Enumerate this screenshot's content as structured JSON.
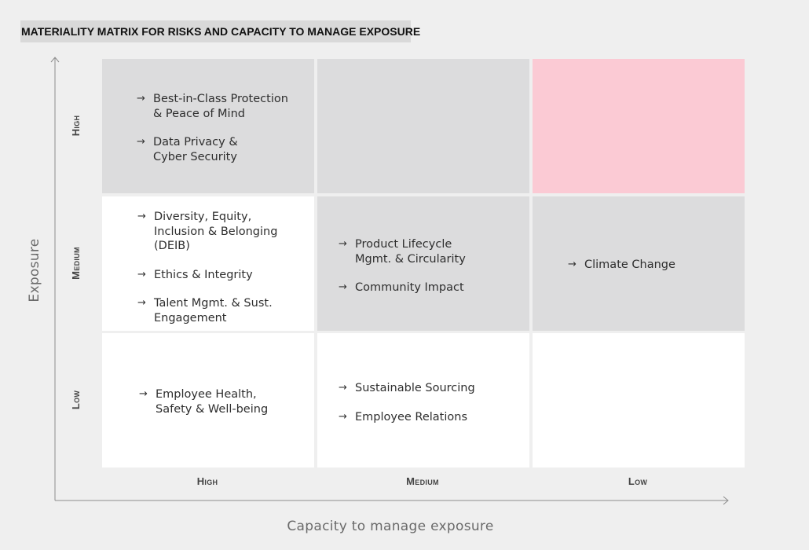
{
  "title": "MATERIALITY MATRIX FOR RISKS AND CAPACITY TO MANAGE EXPOSURE",
  "axes": {
    "y_title": "Exposure",
    "x_title": "Capacity to manage exposure",
    "y_levels": [
      "High",
      "Medium",
      "Low"
    ],
    "x_levels": [
      "High",
      "Medium",
      "Low"
    ]
  },
  "arrow_glyph": "→",
  "colors": {
    "background": "#efefef",
    "grey_cell": "#dcdcdd",
    "white_cell": "#ffffff",
    "highlight_cell": "#fbcad4"
  },
  "cells": {
    "high_exposure_high_capacity": {
      "fill": "grey",
      "items": [
        "Best-in-Class Protection\n& Peace of Mind",
        "Data Privacy &\nCyber Security"
      ]
    },
    "high_exposure_medium_capacity": {
      "fill": "grey",
      "items": []
    },
    "high_exposure_low_capacity": {
      "fill": "pink",
      "items": []
    },
    "medium_exposure_high_capacity": {
      "fill": "white",
      "items": [
        "Diversity, Equity,\nInclusion & Belonging\n(DEIB)",
        "Ethics & Integrity",
        "Talent Mgmt. & Sust.\nEngagement"
      ]
    },
    "medium_exposure_medium_capacity": {
      "fill": "grey",
      "items": [
        "Product Lifecycle\nMgmt. & Circularity",
        "Community Impact"
      ]
    },
    "medium_exposure_low_capacity": {
      "fill": "grey",
      "items": [
        "Climate Change"
      ]
    },
    "low_exposure_high_capacity": {
      "fill": "white",
      "items": [
        "Employee Health,\nSafety & Well-being"
      ]
    },
    "low_exposure_medium_capacity": {
      "fill": "white",
      "items": [
        "Sustainable Sourcing",
        "Employee Relations"
      ]
    },
    "low_exposure_low_capacity": {
      "fill": "white",
      "items": []
    }
  }
}
